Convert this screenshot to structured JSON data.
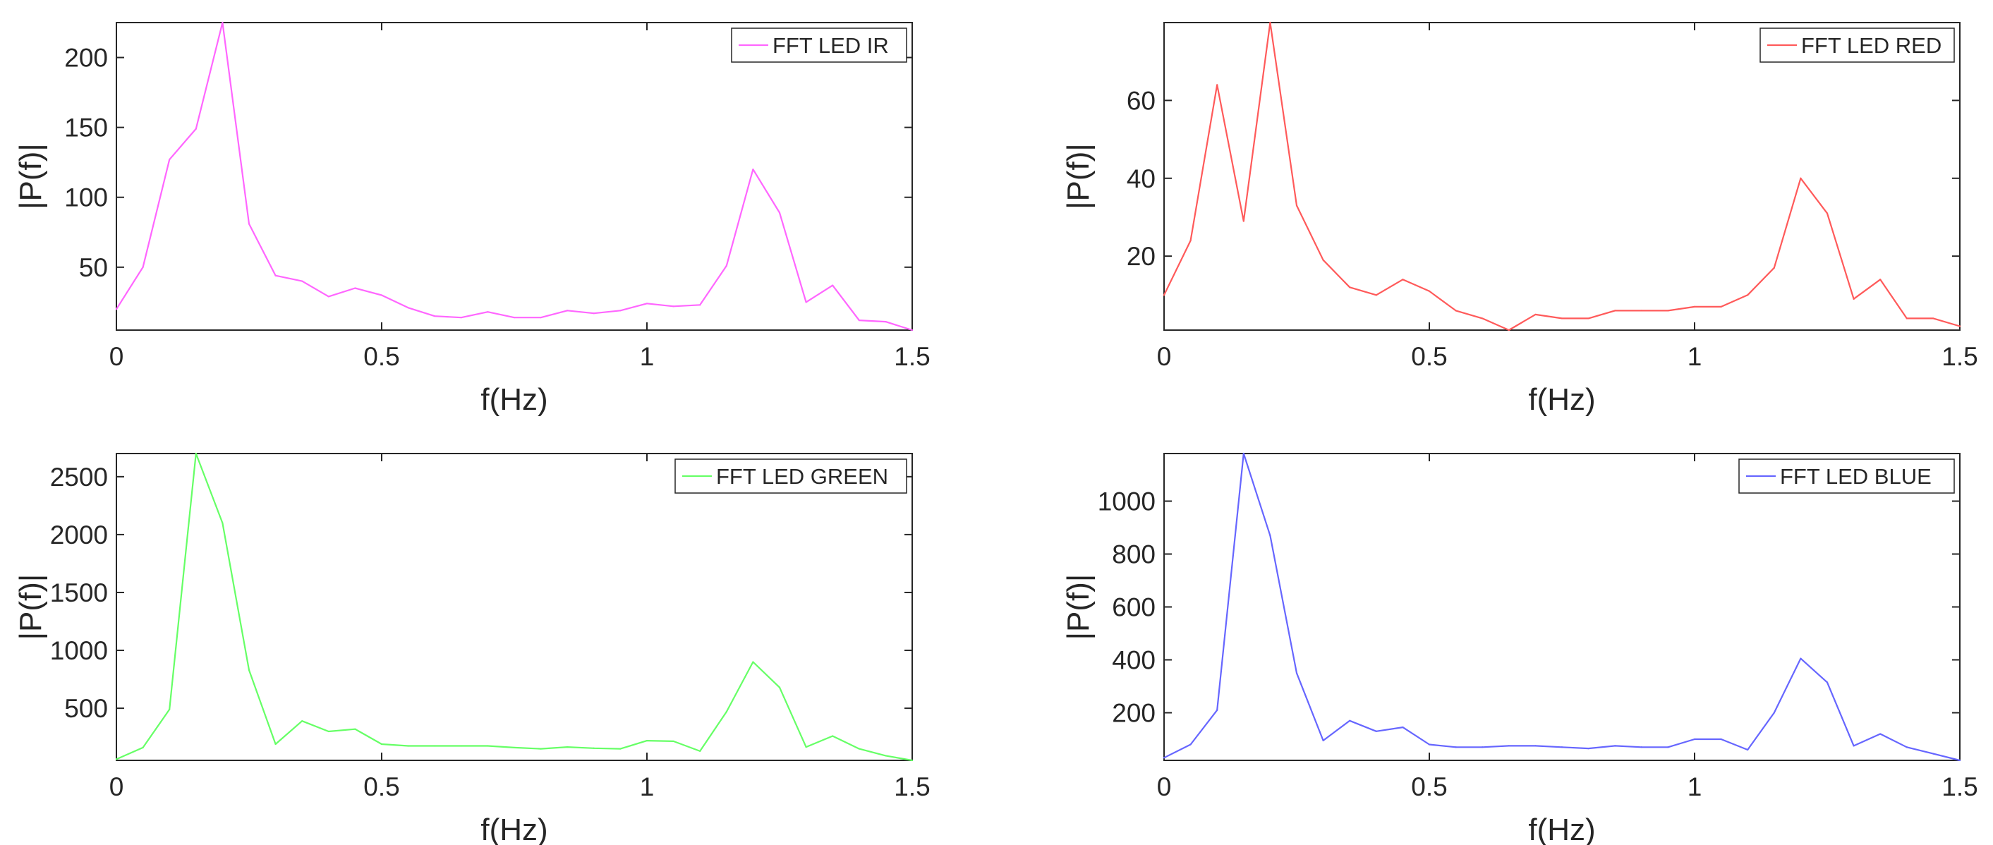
{
  "chart_data": [
    {
      "type": "line",
      "xlabel": "f(Hz)",
      "ylabel": "|P(f)|",
      "xlim": [
        0,
        1.5
      ],
      "ylim": [
        5,
        225
      ],
      "xticks": [
        0,
        0.5,
        1,
        1.5
      ],
      "xtick_labels": [
        "0",
        "0.5",
        "1",
        "1.5"
      ],
      "yticks": [
        50,
        100,
        150,
        200
      ],
      "ytick_labels": [
        "50",
        "100",
        "150",
        "200"
      ],
      "grid": false,
      "legend_position": "top-right",
      "color": "#ff66ff",
      "series": [
        {
          "name": "FFT LED IR",
          "x": [
            0,
            0.05,
            0.1,
            0.15,
            0.2,
            0.25,
            0.3,
            0.35,
            0.4,
            0.45,
            0.5,
            0.55,
            0.6,
            0.65,
            0.7,
            0.75,
            0.8,
            0.85,
            0.9,
            0.95,
            1.0,
            1.05,
            1.1,
            1.15,
            1.2,
            1.25,
            1.3,
            1.35,
            1.4,
            1.45,
            1.5
          ],
          "values": [
            20,
            50,
            127,
            149,
            225,
            81,
            44,
            40,
            29,
            35,
            30,
            21,
            15,
            14,
            18,
            14,
            14,
            19,
            17,
            19,
            24,
            22,
            23,
            51,
            120,
            89,
            25,
            37,
            12,
            11,
            5
          ]
        }
      ]
    },
    {
      "type": "line",
      "xlabel": "f(Hz)",
      "ylabel": "|P(f)|",
      "xlim": [
        0,
        1.5
      ],
      "ylim": [
        1,
        80
      ],
      "xticks": [
        0,
        0.5,
        1,
        1.5
      ],
      "xtick_labels": [
        "0",
        "0.5",
        "1",
        "1.5"
      ],
      "yticks": [
        20,
        40,
        60
      ],
      "ytick_labels": [
        "20",
        "40",
        "60"
      ],
      "grid": false,
      "legend_position": "top-right",
      "color": "#ff5a5a",
      "series": [
        {
          "name": "FFT LED RED",
          "x": [
            0,
            0.05,
            0.1,
            0.15,
            0.2,
            0.25,
            0.3,
            0.35,
            0.4,
            0.45,
            0.5,
            0.55,
            0.6,
            0.65,
            0.7,
            0.75,
            0.8,
            0.85,
            0.9,
            0.95,
            1.0,
            1.05,
            1.1,
            1.15,
            1.2,
            1.25,
            1.3,
            1.35,
            1.4,
            1.45,
            1.5
          ],
          "values": [
            10,
            24,
            64,
            29,
            80,
            33,
            19,
            12,
            10,
            14,
            11,
            6,
            4,
            1,
            5,
            4,
            4,
            6,
            6,
            6,
            7,
            7,
            10,
            17,
            40,
            31,
            9,
            14,
            4,
            4,
            2
          ]
        }
      ]
    },
    {
      "type": "line",
      "xlabel": "f(Hz)",
      "ylabel": "|P(f)|",
      "xlim": [
        0,
        1.5
      ],
      "ylim": [
        50,
        2700
      ],
      "xticks": [
        0,
        0.5,
        1,
        1.5
      ],
      "xtick_labels": [
        "0",
        "0.5",
        "1",
        "1.5"
      ],
      "yticks": [
        500,
        1000,
        1500,
        2000,
        2500
      ],
      "ytick_labels": [
        "500",
        "1000",
        "1500",
        "2000",
        "2500"
      ],
      "grid": false,
      "legend_position": "top-right",
      "color": "#66ff66",
      "series": [
        {
          "name": "FFT LED GREEN",
          "x": [
            0,
            0.05,
            0.1,
            0.15,
            0.2,
            0.25,
            0.3,
            0.35,
            0.4,
            0.45,
            0.5,
            0.55,
            0.6,
            0.65,
            0.7,
            0.75,
            0.8,
            0.85,
            0.9,
            0.95,
            1.0,
            1.05,
            1.1,
            1.15,
            1.2,
            1.25,
            1.3,
            1.35,
            1.4,
            1.45,
            1.5
          ],
          "values": [
            60,
            160,
            490,
            2700,
            2100,
            830,
            190,
            390,
            300,
            320,
            190,
            175,
            175,
            175,
            175,
            160,
            150,
            165,
            155,
            150,
            220,
            215,
            130,
            470,
            900,
            680,
            165,
            260,
            150,
            90,
            50
          ]
        }
      ]
    },
    {
      "type": "line",
      "xlabel": "f(Hz)",
      "ylabel": "|P(f)|",
      "xlim": [
        0,
        1.5
      ],
      "ylim": [
        20,
        1180
      ],
      "xticks": [
        0,
        0.5,
        1,
        1.5
      ],
      "xtick_labels": [
        "0",
        "0.5",
        "1",
        "1.5"
      ],
      "yticks": [
        200,
        400,
        600,
        800,
        1000
      ],
      "ytick_labels": [
        "200",
        "400",
        "600",
        "800",
        "1000"
      ],
      "grid": false,
      "legend_position": "top-right",
      "color": "#6666ff",
      "series": [
        {
          "name": "FFT LED BLUE",
          "x": [
            0,
            0.05,
            0.1,
            0.15,
            0.2,
            0.25,
            0.3,
            0.35,
            0.4,
            0.45,
            0.5,
            0.55,
            0.6,
            0.65,
            0.7,
            0.75,
            0.8,
            0.85,
            0.9,
            0.95,
            1.0,
            1.05,
            1.1,
            1.15,
            1.2,
            1.25,
            1.3,
            1.35,
            1.4,
            1.45,
            1.5
          ],
          "values": [
            30,
            80,
            210,
            1180,
            870,
            350,
            95,
            170,
            130,
            145,
            80,
            70,
            70,
            75,
            75,
            70,
            65,
            75,
            70,
            70,
            100,
            100,
            60,
            200,
            405,
            315,
            75,
            120,
            70,
            45,
            20
          ]
        }
      ]
    }
  ]
}
